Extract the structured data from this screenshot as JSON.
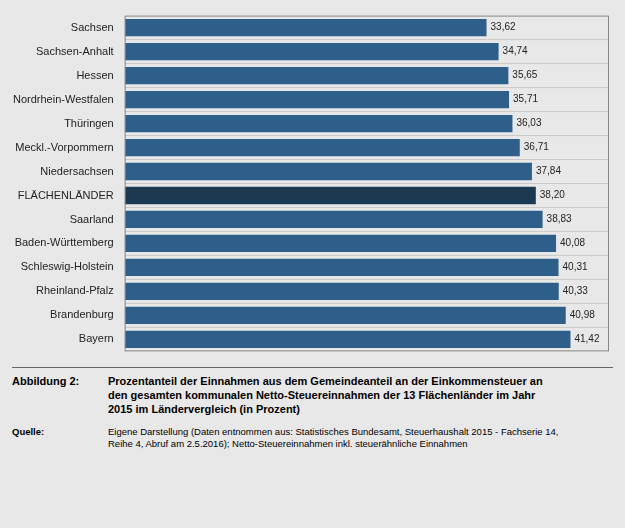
{
  "chart_data": {
    "type": "bar",
    "orientation": "horizontal",
    "categories": [
      "Sachsen",
      "Sachsen-Anhalt",
      "Hessen",
      "Nordrhein-Westfalen",
      "Thüringen",
      "Meckl.-Vorpommern",
      "Niedersachsen",
      "FLÄCHENLÄNDER",
      "Saarland",
      "Baden-Württemberg",
      "Schleswig-Holstein",
      "Rheinland-Pfalz",
      "Brandenburg",
      "Bayern"
    ],
    "values": [
      33.62,
      34.74,
      35.65,
      35.71,
      36.03,
      36.71,
      37.84,
      38.2,
      38.83,
      40.08,
      40.31,
      40.33,
      40.98,
      41.42
    ],
    "value_labels": [
      "33,62",
      "34,74",
      "35,65",
      "35,71",
      "36,03",
      "36,71",
      "37,84",
      "38,20",
      "38,83",
      "40,08",
      "40,31",
      "40,33",
      "40,98",
      "41,42"
    ],
    "data_labels": true,
    "colors": [
      "#2E5F8A",
      "#2E5F8A",
      "#2E5F8A",
      "#2E5F8A",
      "#2E5F8A",
      "#2E5F8A",
      "#2E5F8A",
      "#1B3A52",
      "#2E5F8A",
      "#2E5F8A",
      "#2E5F8A",
      "#2E5F8A",
      "#2E5F8A",
      "#2E5F8A"
    ],
    "xlim": [
      0,
      45
    ],
    "tick_labels": "y",
    "grid": false,
    "annotations": [
      "Abbildung 2:",
      "Prozentanteil der Einnahmen aus dem Gemeindeanteil an der Einkommensteuer an\nden gesamten kommunalen Netto-Steuereinnahmen der 13 Flächenländer im Jahr\n2015 im Ländervergleich (in Prozent)",
      "Quelle:",
      "Eigene Darstellung (Daten entnommen aus: Statistisches Bundesamt, Steuerhaushalt 2015 - Fachserie 14,\nReihe 4, Abruf am 2.5.2016); Netto-Steuereinnahmen inkl. steuerähnliche Einnahmen"
    ]
  }
}
